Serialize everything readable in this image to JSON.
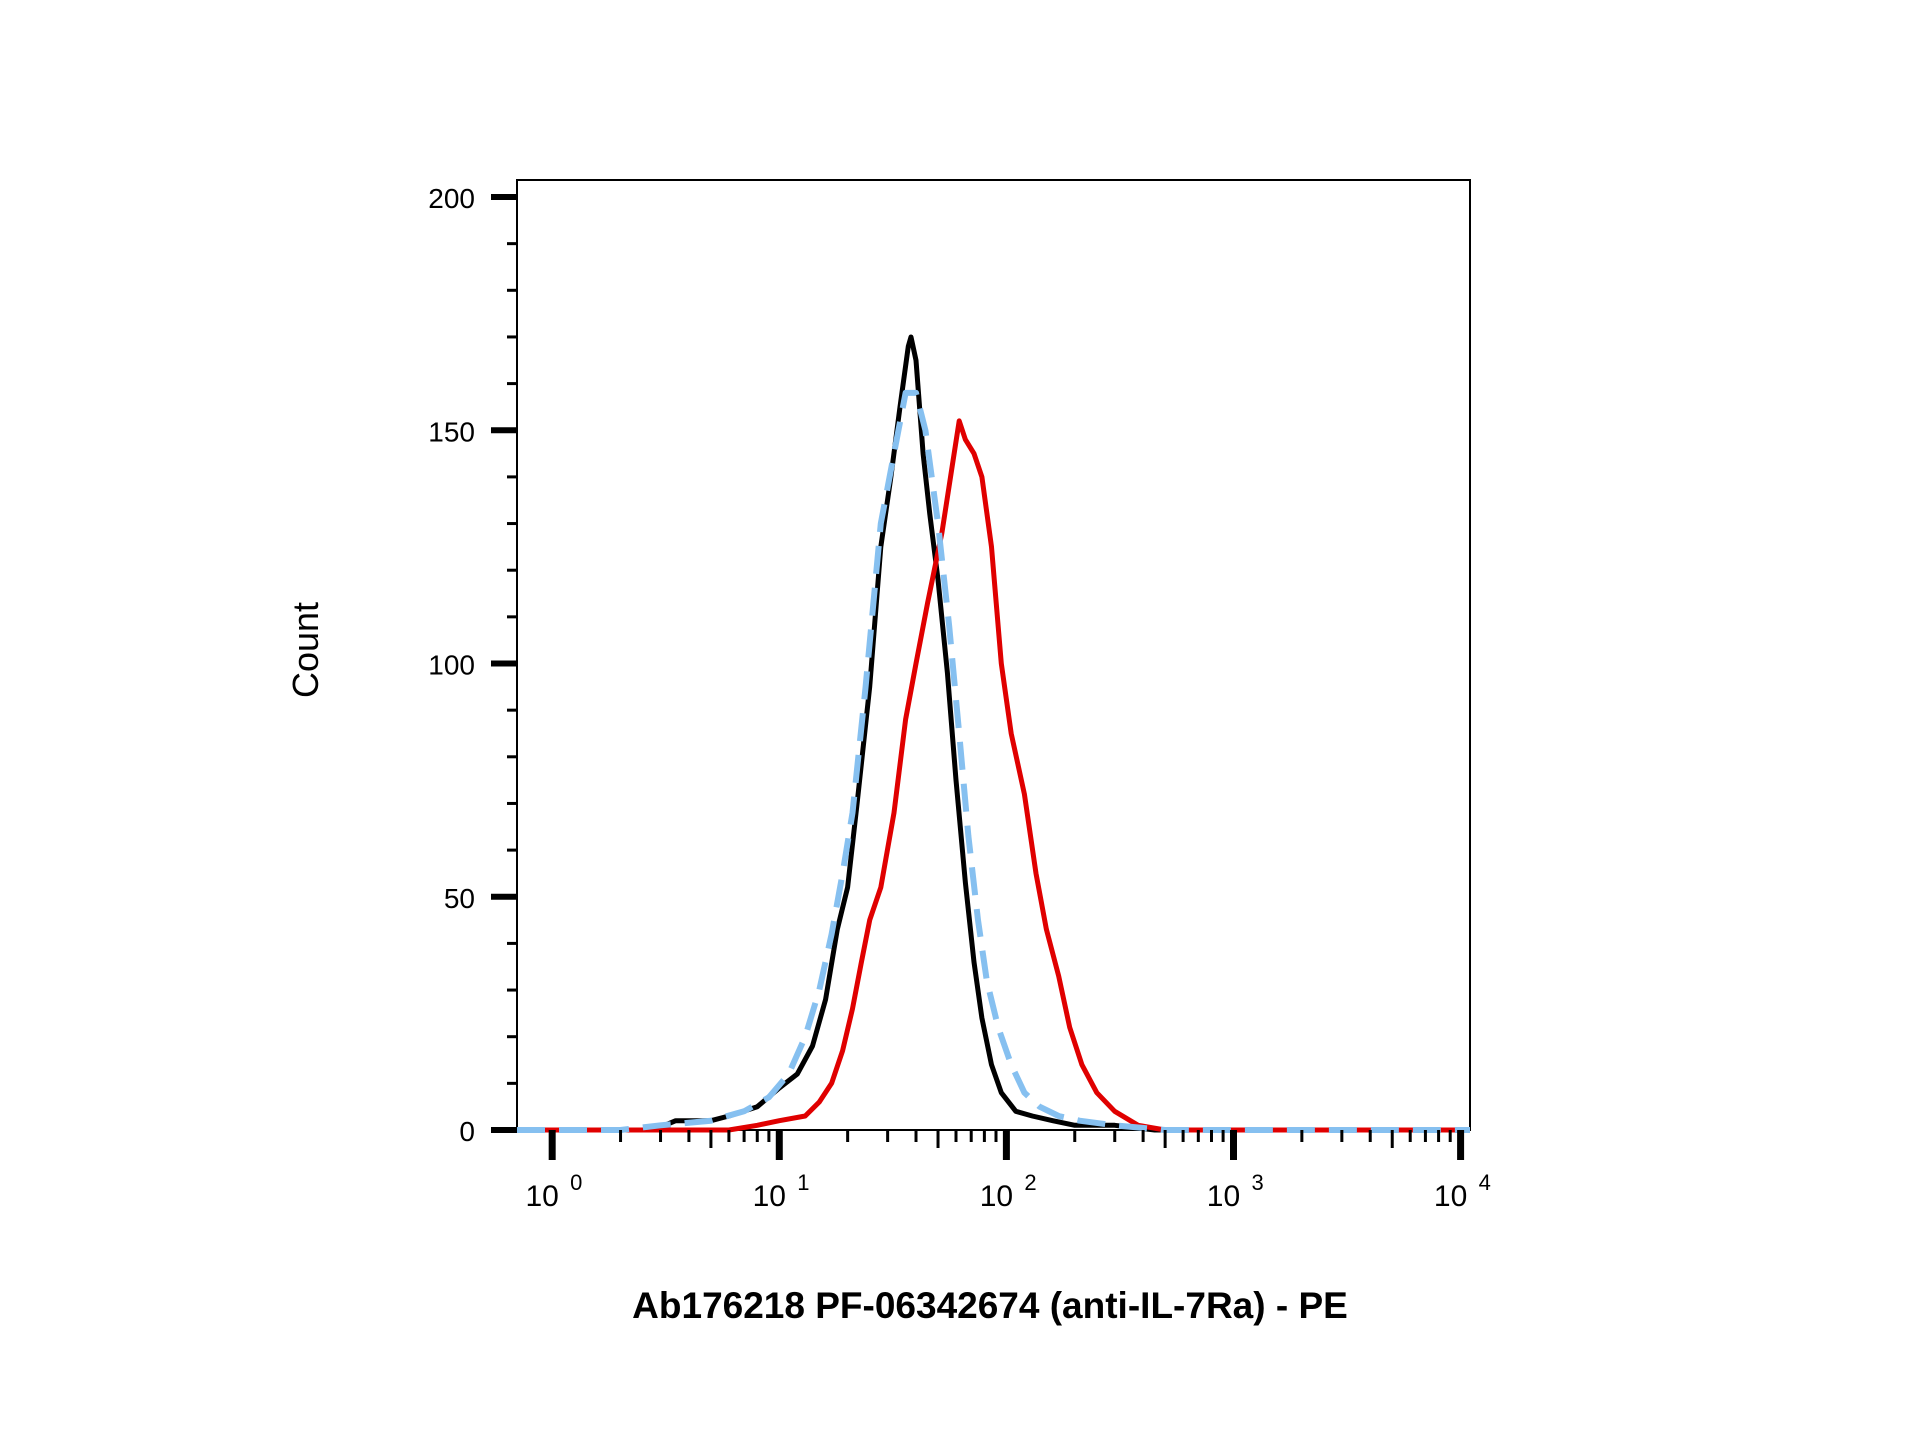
{
  "chart_data": {
    "type": "line",
    "title": "",
    "xlabel": "Ab176218 PF-06342674 (anti-IL-7Ra) - PE",
    "ylabel": "Count",
    "xscale": "log",
    "xlim": [
      0.7,
      11000
    ],
    "ylim": [
      0,
      200
    ],
    "grid": false,
    "legend": "none",
    "y_ticks": [
      {
        "value": 0,
        "label": "0"
      },
      {
        "value": 50,
        "label": "50"
      },
      {
        "value": 100,
        "label": "100"
      },
      {
        "value": 150,
        "label": "150"
      },
      {
        "value": 200,
        "label": "200"
      }
    ],
    "x_ticks": [
      {
        "value": 1,
        "base": "10",
        "exp": "0"
      },
      {
        "value": 10,
        "base": "10",
        "exp": "1"
      },
      {
        "value": 100,
        "base": "10",
        "exp": "2"
      },
      {
        "value": 1000,
        "base": "10",
        "exp": "3"
      },
      {
        "value": 10000,
        "base": "10",
        "exp": "4"
      }
    ],
    "series": [
      {
        "color": "#000000",
        "style": "solid",
        "points": [
          [
            0.7,
            0
          ],
          [
            2.8,
            0
          ],
          [
            3.5,
            2
          ],
          [
            5,
            2
          ],
          [
            6,
            3
          ],
          [
            8,
            5
          ],
          [
            10,
            9
          ],
          [
            12,
            12
          ],
          [
            14,
            18
          ],
          [
            16,
            28
          ],
          [
            18,
            43
          ],
          [
            20,
            52
          ],
          [
            22,
            70
          ],
          [
            25,
            95
          ],
          [
            28,
            125
          ],
          [
            31,
            140
          ],
          [
            34,
            155
          ],
          [
            37,
            168
          ],
          [
            38,
            170
          ],
          [
            40,
            165
          ],
          [
            43,
            145
          ],
          [
            46,
            132
          ],
          [
            50,
            118
          ],
          [
            55,
            98
          ],
          [
            60,
            75
          ],
          [
            66,
            53
          ],
          [
            72,
            36
          ],
          [
            78,
            24
          ],
          [
            86,
            14
          ],
          [
            95,
            8
          ],
          [
            110,
            4
          ],
          [
            130,
            3
          ],
          [
            160,
            2
          ],
          [
            200,
            1
          ],
          [
            300,
            1
          ],
          [
            450,
            0
          ],
          [
            11000,
            0
          ]
        ]
      },
      {
        "color": "#e00000",
        "style": "solid",
        "points": [
          [
            0.7,
            0
          ],
          [
            6,
            0
          ],
          [
            8,
            1
          ],
          [
            10,
            2
          ],
          [
            13,
            3
          ],
          [
            15,
            6
          ],
          [
            17,
            10
          ],
          [
            19,
            17
          ],
          [
            21,
            26
          ],
          [
            23,
            36
          ],
          [
            25,
            45
          ],
          [
            28,
            52
          ],
          [
            32,
            68
          ],
          [
            36,
            88
          ],
          [
            40,
            100
          ],
          [
            45,
            113
          ],
          [
            52,
            128
          ],
          [
            58,
            143
          ],
          [
            62,
            152
          ],
          [
            66,
            148
          ],
          [
            72,
            145
          ],
          [
            78,
            140
          ],
          [
            86,
            125
          ],
          [
            95,
            100
          ],
          [
            105,
            85
          ],
          [
            120,
            72
          ],
          [
            135,
            55
          ],
          [
            150,
            43
          ],
          [
            170,
            33
          ],
          [
            190,
            22
          ],
          [
            215,
            14
          ],
          [
            250,
            8
          ],
          [
            300,
            4
          ],
          [
            380,
            1
          ],
          [
            500,
            0
          ],
          [
            11000,
            0
          ]
        ]
      },
      {
        "color": "#86c0f0",
        "style": "dashed",
        "points": [
          [
            0.7,
            0
          ],
          [
            2,
            0
          ],
          [
            3,
            1
          ],
          [
            5,
            2
          ],
          [
            7,
            4
          ],
          [
            9,
            7
          ],
          [
            11,
            12
          ],
          [
            13,
            20
          ],
          [
            15,
            30
          ],
          [
            17,
            42
          ],
          [
            19,
            55
          ],
          [
            21,
            68
          ],
          [
            24,
            95
          ],
          [
            28,
            130
          ],
          [
            32,
            145
          ],
          [
            36,
            158
          ],
          [
            40,
            158
          ],
          [
            44,
            150
          ],
          [
            50,
            130
          ],
          [
            56,
            108
          ],
          [
            62,
            85
          ],
          [
            68,
            63
          ],
          [
            75,
            45
          ],
          [
            82,
            32
          ],
          [
            92,
            22
          ],
          [
            105,
            14
          ],
          [
            120,
            8
          ],
          [
            140,
            5
          ],
          [
            170,
            3
          ],
          [
            210,
            2
          ],
          [
            300,
            1
          ],
          [
            500,
            0
          ],
          [
            11000,
            0
          ]
        ]
      }
    ]
  }
}
